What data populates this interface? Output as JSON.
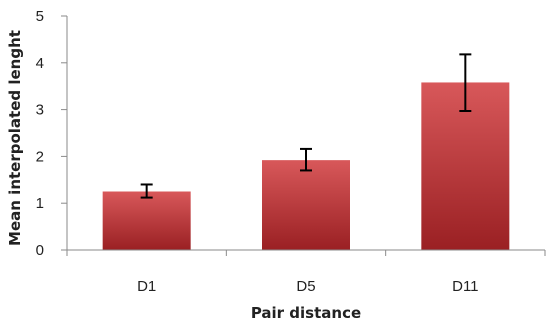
{
  "chart_data": {
    "type": "bar",
    "title": "",
    "xlabel": "Pair distance",
    "ylabel": "Mean interpolated lenght",
    "categories": [
      "D1",
      "D5",
      "D11"
    ],
    "series": [
      {
        "values": [
          1.25,
          1.92,
          3.58
        ],
        "error_low": [
          1.12,
          1.7,
          2.97
        ],
        "error_high": [
          1.4,
          2.16,
          4.18
        ]
      }
    ],
    "ylim": [
      0,
      5
    ],
    "yticks": [
      "0",
      "1",
      "2",
      "3",
      "4",
      "5"
    ],
    "grid": false,
    "legend": "none",
    "colors": {
      "bar_top": "#d8585a",
      "bar_bottom": "#9a2023"
    }
  }
}
